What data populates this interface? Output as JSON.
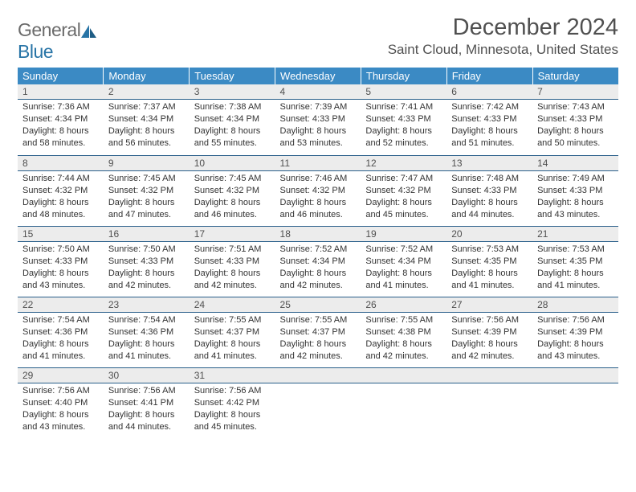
{
  "logo": {
    "word1": "General",
    "word2": "Blue"
  },
  "title": "December 2024",
  "location": "Saint Cloud, Minnesota, United States",
  "dayHeaders": [
    "Sunday",
    "Monday",
    "Tuesday",
    "Wednesday",
    "Thursday",
    "Friday",
    "Saturday"
  ],
  "colors": {
    "header_bg": "#3b8ac4",
    "header_text": "#ffffff",
    "daynum_bg": "#ececec",
    "rule": "#2a5f8a",
    "body_text": "#333333",
    "title_text": "#505050"
  },
  "weeks": [
    [
      {
        "n": "1",
        "sr": "Sunrise: 7:36 AM",
        "ss": "Sunset: 4:34 PM",
        "d1": "Daylight: 8 hours",
        "d2": "and 58 minutes."
      },
      {
        "n": "2",
        "sr": "Sunrise: 7:37 AM",
        "ss": "Sunset: 4:34 PM",
        "d1": "Daylight: 8 hours",
        "d2": "and 56 minutes."
      },
      {
        "n": "3",
        "sr": "Sunrise: 7:38 AM",
        "ss": "Sunset: 4:34 PM",
        "d1": "Daylight: 8 hours",
        "d2": "and 55 minutes."
      },
      {
        "n": "4",
        "sr": "Sunrise: 7:39 AM",
        "ss": "Sunset: 4:33 PM",
        "d1": "Daylight: 8 hours",
        "d2": "and 53 minutes."
      },
      {
        "n": "5",
        "sr": "Sunrise: 7:41 AM",
        "ss": "Sunset: 4:33 PM",
        "d1": "Daylight: 8 hours",
        "d2": "and 52 minutes."
      },
      {
        "n": "6",
        "sr": "Sunrise: 7:42 AM",
        "ss": "Sunset: 4:33 PM",
        "d1": "Daylight: 8 hours",
        "d2": "and 51 minutes."
      },
      {
        "n": "7",
        "sr": "Sunrise: 7:43 AM",
        "ss": "Sunset: 4:33 PM",
        "d1": "Daylight: 8 hours",
        "d2": "and 50 minutes."
      }
    ],
    [
      {
        "n": "8",
        "sr": "Sunrise: 7:44 AM",
        "ss": "Sunset: 4:32 PM",
        "d1": "Daylight: 8 hours",
        "d2": "and 48 minutes."
      },
      {
        "n": "9",
        "sr": "Sunrise: 7:45 AM",
        "ss": "Sunset: 4:32 PM",
        "d1": "Daylight: 8 hours",
        "d2": "and 47 minutes."
      },
      {
        "n": "10",
        "sr": "Sunrise: 7:45 AM",
        "ss": "Sunset: 4:32 PM",
        "d1": "Daylight: 8 hours",
        "d2": "and 46 minutes."
      },
      {
        "n": "11",
        "sr": "Sunrise: 7:46 AM",
        "ss": "Sunset: 4:32 PM",
        "d1": "Daylight: 8 hours",
        "d2": "and 46 minutes."
      },
      {
        "n": "12",
        "sr": "Sunrise: 7:47 AM",
        "ss": "Sunset: 4:32 PM",
        "d1": "Daylight: 8 hours",
        "d2": "and 45 minutes."
      },
      {
        "n": "13",
        "sr": "Sunrise: 7:48 AM",
        "ss": "Sunset: 4:33 PM",
        "d1": "Daylight: 8 hours",
        "d2": "and 44 minutes."
      },
      {
        "n": "14",
        "sr": "Sunrise: 7:49 AM",
        "ss": "Sunset: 4:33 PM",
        "d1": "Daylight: 8 hours",
        "d2": "and 43 minutes."
      }
    ],
    [
      {
        "n": "15",
        "sr": "Sunrise: 7:50 AM",
        "ss": "Sunset: 4:33 PM",
        "d1": "Daylight: 8 hours",
        "d2": "and 43 minutes."
      },
      {
        "n": "16",
        "sr": "Sunrise: 7:50 AM",
        "ss": "Sunset: 4:33 PM",
        "d1": "Daylight: 8 hours",
        "d2": "and 42 minutes."
      },
      {
        "n": "17",
        "sr": "Sunrise: 7:51 AM",
        "ss": "Sunset: 4:33 PM",
        "d1": "Daylight: 8 hours",
        "d2": "and 42 minutes."
      },
      {
        "n": "18",
        "sr": "Sunrise: 7:52 AM",
        "ss": "Sunset: 4:34 PM",
        "d1": "Daylight: 8 hours",
        "d2": "and 42 minutes."
      },
      {
        "n": "19",
        "sr": "Sunrise: 7:52 AM",
        "ss": "Sunset: 4:34 PM",
        "d1": "Daylight: 8 hours",
        "d2": "and 41 minutes."
      },
      {
        "n": "20",
        "sr": "Sunrise: 7:53 AM",
        "ss": "Sunset: 4:35 PM",
        "d1": "Daylight: 8 hours",
        "d2": "and 41 minutes."
      },
      {
        "n": "21",
        "sr": "Sunrise: 7:53 AM",
        "ss": "Sunset: 4:35 PM",
        "d1": "Daylight: 8 hours",
        "d2": "and 41 minutes."
      }
    ],
    [
      {
        "n": "22",
        "sr": "Sunrise: 7:54 AM",
        "ss": "Sunset: 4:36 PM",
        "d1": "Daylight: 8 hours",
        "d2": "and 41 minutes."
      },
      {
        "n": "23",
        "sr": "Sunrise: 7:54 AM",
        "ss": "Sunset: 4:36 PM",
        "d1": "Daylight: 8 hours",
        "d2": "and 41 minutes."
      },
      {
        "n": "24",
        "sr": "Sunrise: 7:55 AM",
        "ss": "Sunset: 4:37 PM",
        "d1": "Daylight: 8 hours",
        "d2": "and 41 minutes."
      },
      {
        "n": "25",
        "sr": "Sunrise: 7:55 AM",
        "ss": "Sunset: 4:37 PM",
        "d1": "Daylight: 8 hours",
        "d2": "and 42 minutes."
      },
      {
        "n": "26",
        "sr": "Sunrise: 7:55 AM",
        "ss": "Sunset: 4:38 PM",
        "d1": "Daylight: 8 hours",
        "d2": "and 42 minutes."
      },
      {
        "n": "27",
        "sr": "Sunrise: 7:56 AM",
        "ss": "Sunset: 4:39 PM",
        "d1": "Daylight: 8 hours",
        "d2": "and 42 minutes."
      },
      {
        "n": "28",
        "sr": "Sunrise: 7:56 AM",
        "ss": "Sunset: 4:39 PM",
        "d1": "Daylight: 8 hours",
        "d2": "and 43 minutes."
      }
    ],
    [
      {
        "n": "29",
        "sr": "Sunrise: 7:56 AM",
        "ss": "Sunset: 4:40 PM",
        "d1": "Daylight: 8 hours",
        "d2": "and 43 minutes."
      },
      {
        "n": "30",
        "sr": "Sunrise: 7:56 AM",
        "ss": "Sunset: 4:41 PM",
        "d1": "Daylight: 8 hours",
        "d2": "and 44 minutes."
      },
      {
        "n": "31",
        "sr": "Sunrise: 7:56 AM",
        "ss": "Sunset: 4:42 PM",
        "d1": "Daylight: 8 hours",
        "d2": "and 45 minutes."
      },
      {
        "empty": true
      },
      {
        "empty": true
      },
      {
        "empty": true
      },
      {
        "empty": true
      }
    ]
  ]
}
